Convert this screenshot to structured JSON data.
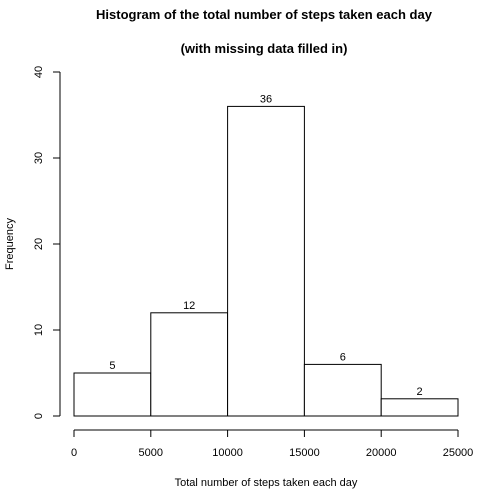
{
  "chart_data": {
    "type": "bar",
    "title": "Histogram of the total number of steps taken each day",
    "subtitle": "(with missing data filled in)",
    "xlabel": "Total number of steps taken each day",
    "ylabel": "Frequency",
    "bins": [
      {
        "from": 0,
        "to": 5000,
        "value": 5
      },
      {
        "from": 5000,
        "to": 10000,
        "value": 12
      },
      {
        "from": 10000,
        "to": 15000,
        "value": 36
      },
      {
        "from": 15000,
        "to": 20000,
        "value": 6
      },
      {
        "from": 20000,
        "to": 25000,
        "value": 2
      }
    ],
    "value_labels": [
      "5",
      "12",
      "36",
      "6",
      "2"
    ],
    "x_ticks": [
      0,
      5000,
      10000,
      15000,
      20000,
      25000
    ],
    "x_tick_labels": [
      "0",
      "5000",
      "10000",
      "15000",
      "20000",
      "25000"
    ],
    "y_ticks": [
      0,
      10,
      20,
      30,
      40
    ],
    "y_tick_labels": [
      "0",
      "10",
      "20",
      "30",
      "40"
    ],
    "xlim": [
      0,
      25000
    ],
    "ylim": [
      0,
      40
    ],
    "grid": false,
    "legend": "none",
    "bar_fill": "#ffffff",
    "bar_stroke": "#000000"
  }
}
